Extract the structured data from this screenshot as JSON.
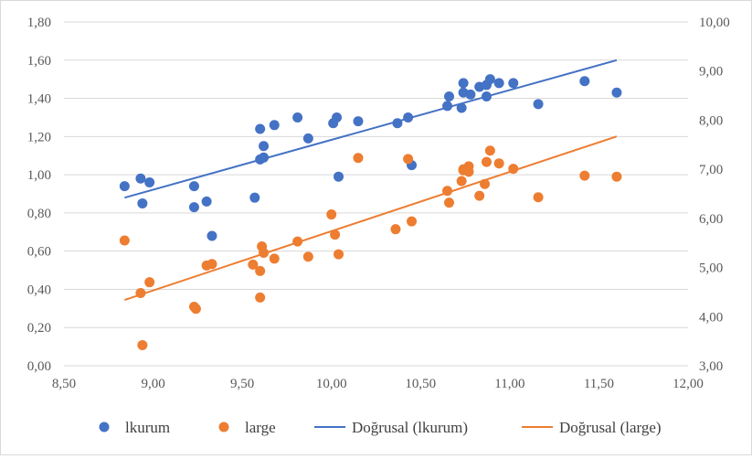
{
  "chart_data": {
    "type": "scatter",
    "title": "",
    "xlabel": "",
    "ylabel": "",
    "y2label": "",
    "grid": "horizontal",
    "legend_position": "bottom",
    "xlim": [
      8.5,
      12.0
    ],
    "ylim": [
      0.0,
      1.8
    ],
    "y2lim": [
      3.0,
      10.0
    ],
    "x_ticks": [
      "8,50",
      "9,00",
      "9,50",
      "10,00",
      "10,50",
      "11,00",
      "11,50",
      "12,00"
    ],
    "y_ticks": [
      "0,00",
      "0,20",
      "0,40",
      "0,60",
      "0,80",
      "1,00",
      "1,20",
      "1,40",
      "1,60",
      "1,80"
    ],
    "y2_ticks": [
      "3,00",
      "4,00",
      "5,00",
      "6,00",
      "7,00",
      "8,00",
      "9,00",
      "10,00"
    ],
    "series": [
      {
        "name": "lkurum",
        "axis": "left",
        "color": "#4472c4",
        "points": [
          [
            8.84,
            0.94
          ],
          [
            8.93,
            0.98
          ],
          [
            8.94,
            0.85
          ],
          [
            8.98,
            0.96
          ],
          [
            9.23,
            0.94
          ],
          [
            9.23,
            0.83
          ],
          [
            9.3,
            0.86
          ],
          [
            9.33,
            0.68
          ],
          [
            9.57,
            0.88
          ],
          [
            9.6,
            1.24
          ],
          [
            9.6,
            1.08
          ],
          [
            9.62,
            1.09
          ],
          [
            9.62,
            1.15
          ],
          [
            9.68,
            1.26
          ],
          [
            9.81,
            1.3
          ],
          [
            9.87,
            1.19
          ],
          [
            10.01,
            1.27
          ],
          [
            10.03,
            1.3
          ],
          [
            10.04,
            0.99
          ],
          [
            10.15,
            1.28
          ],
          [
            10.37,
            1.27
          ],
          [
            10.43,
            1.3
          ],
          [
            10.45,
            1.05
          ],
          [
            10.65,
            1.36
          ],
          [
            10.66,
            1.41
          ],
          [
            10.73,
            1.35
          ],
          [
            10.74,
            1.48
          ],
          [
            10.74,
            1.43
          ],
          [
            10.78,
            1.42
          ],
          [
            10.83,
            1.46
          ],
          [
            10.87,
            1.41
          ],
          [
            10.87,
            1.47
          ],
          [
            10.89,
            1.5
          ],
          [
            10.94,
            1.48
          ],
          [
            11.02,
            1.48
          ],
          [
            11.16,
            1.37
          ],
          [
            11.42,
            1.49
          ],
          [
            11.6,
            1.43
          ]
        ]
      },
      {
        "name": "large",
        "axis": "right",
        "color": "#ed7d31",
        "points": [
          [
            8.84,
            5.55
          ],
          [
            8.93,
            4.48
          ],
          [
            8.94,
            3.42
          ],
          [
            8.98,
            4.7
          ],
          [
            9.23,
            4.2
          ],
          [
            9.24,
            4.16
          ],
          [
            9.3,
            5.04
          ],
          [
            9.33,
            5.07
          ],
          [
            9.56,
            5.06
          ],
          [
            9.6,
            4.93
          ],
          [
            9.6,
            4.39
          ],
          [
            9.61,
            5.43
          ],
          [
            9.62,
            5.3
          ],
          [
            9.68,
            5.18
          ],
          [
            9.81,
            5.53
          ],
          [
            9.87,
            5.22
          ],
          [
            10.0,
            6.08
          ],
          [
            10.02,
            5.67
          ],
          [
            10.04,
            5.27
          ],
          [
            10.15,
            7.23
          ],
          [
            10.36,
            5.78
          ],
          [
            10.43,
            7.21
          ],
          [
            10.45,
            5.94
          ],
          [
            10.65,
            6.56
          ],
          [
            10.66,
            6.32
          ],
          [
            10.73,
            6.76
          ],
          [
            10.74,
            6.98
          ],
          [
            10.74,
            7.0
          ],
          [
            10.77,
            6.95
          ],
          [
            10.77,
            7.06
          ],
          [
            10.83,
            6.46
          ],
          [
            10.86,
            6.7
          ],
          [
            10.87,
            7.15
          ],
          [
            10.89,
            7.38
          ],
          [
            10.94,
            7.12
          ],
          [
            11.02,
            7.01
          ],
          [
            11.16,
            6.43
          ],
          [
            11.42,
            6.87
          ],
          [
            11.6,
            6.85
          ]
        ]
      }
    ],
    "trendlines": [
      {
        "name": "Doğrusal (lkurum)",
        "axis": "left",
        "type": "linear",
        "color": "#4472c4",
        "from": [
          8.84,
          0.88
        ],
        "to": [
          11.6,
          1.6
        ]
      },
      {
        "name": "Doğrusal (large)",
        "axis": "right",
        "type": "linear",
        "color": "#ed7d31",
        "from": [
          8.84,
          4.34
        ],
        "to": [
          11.6,
          7.67
        ]
      }
    ]
  }
}
